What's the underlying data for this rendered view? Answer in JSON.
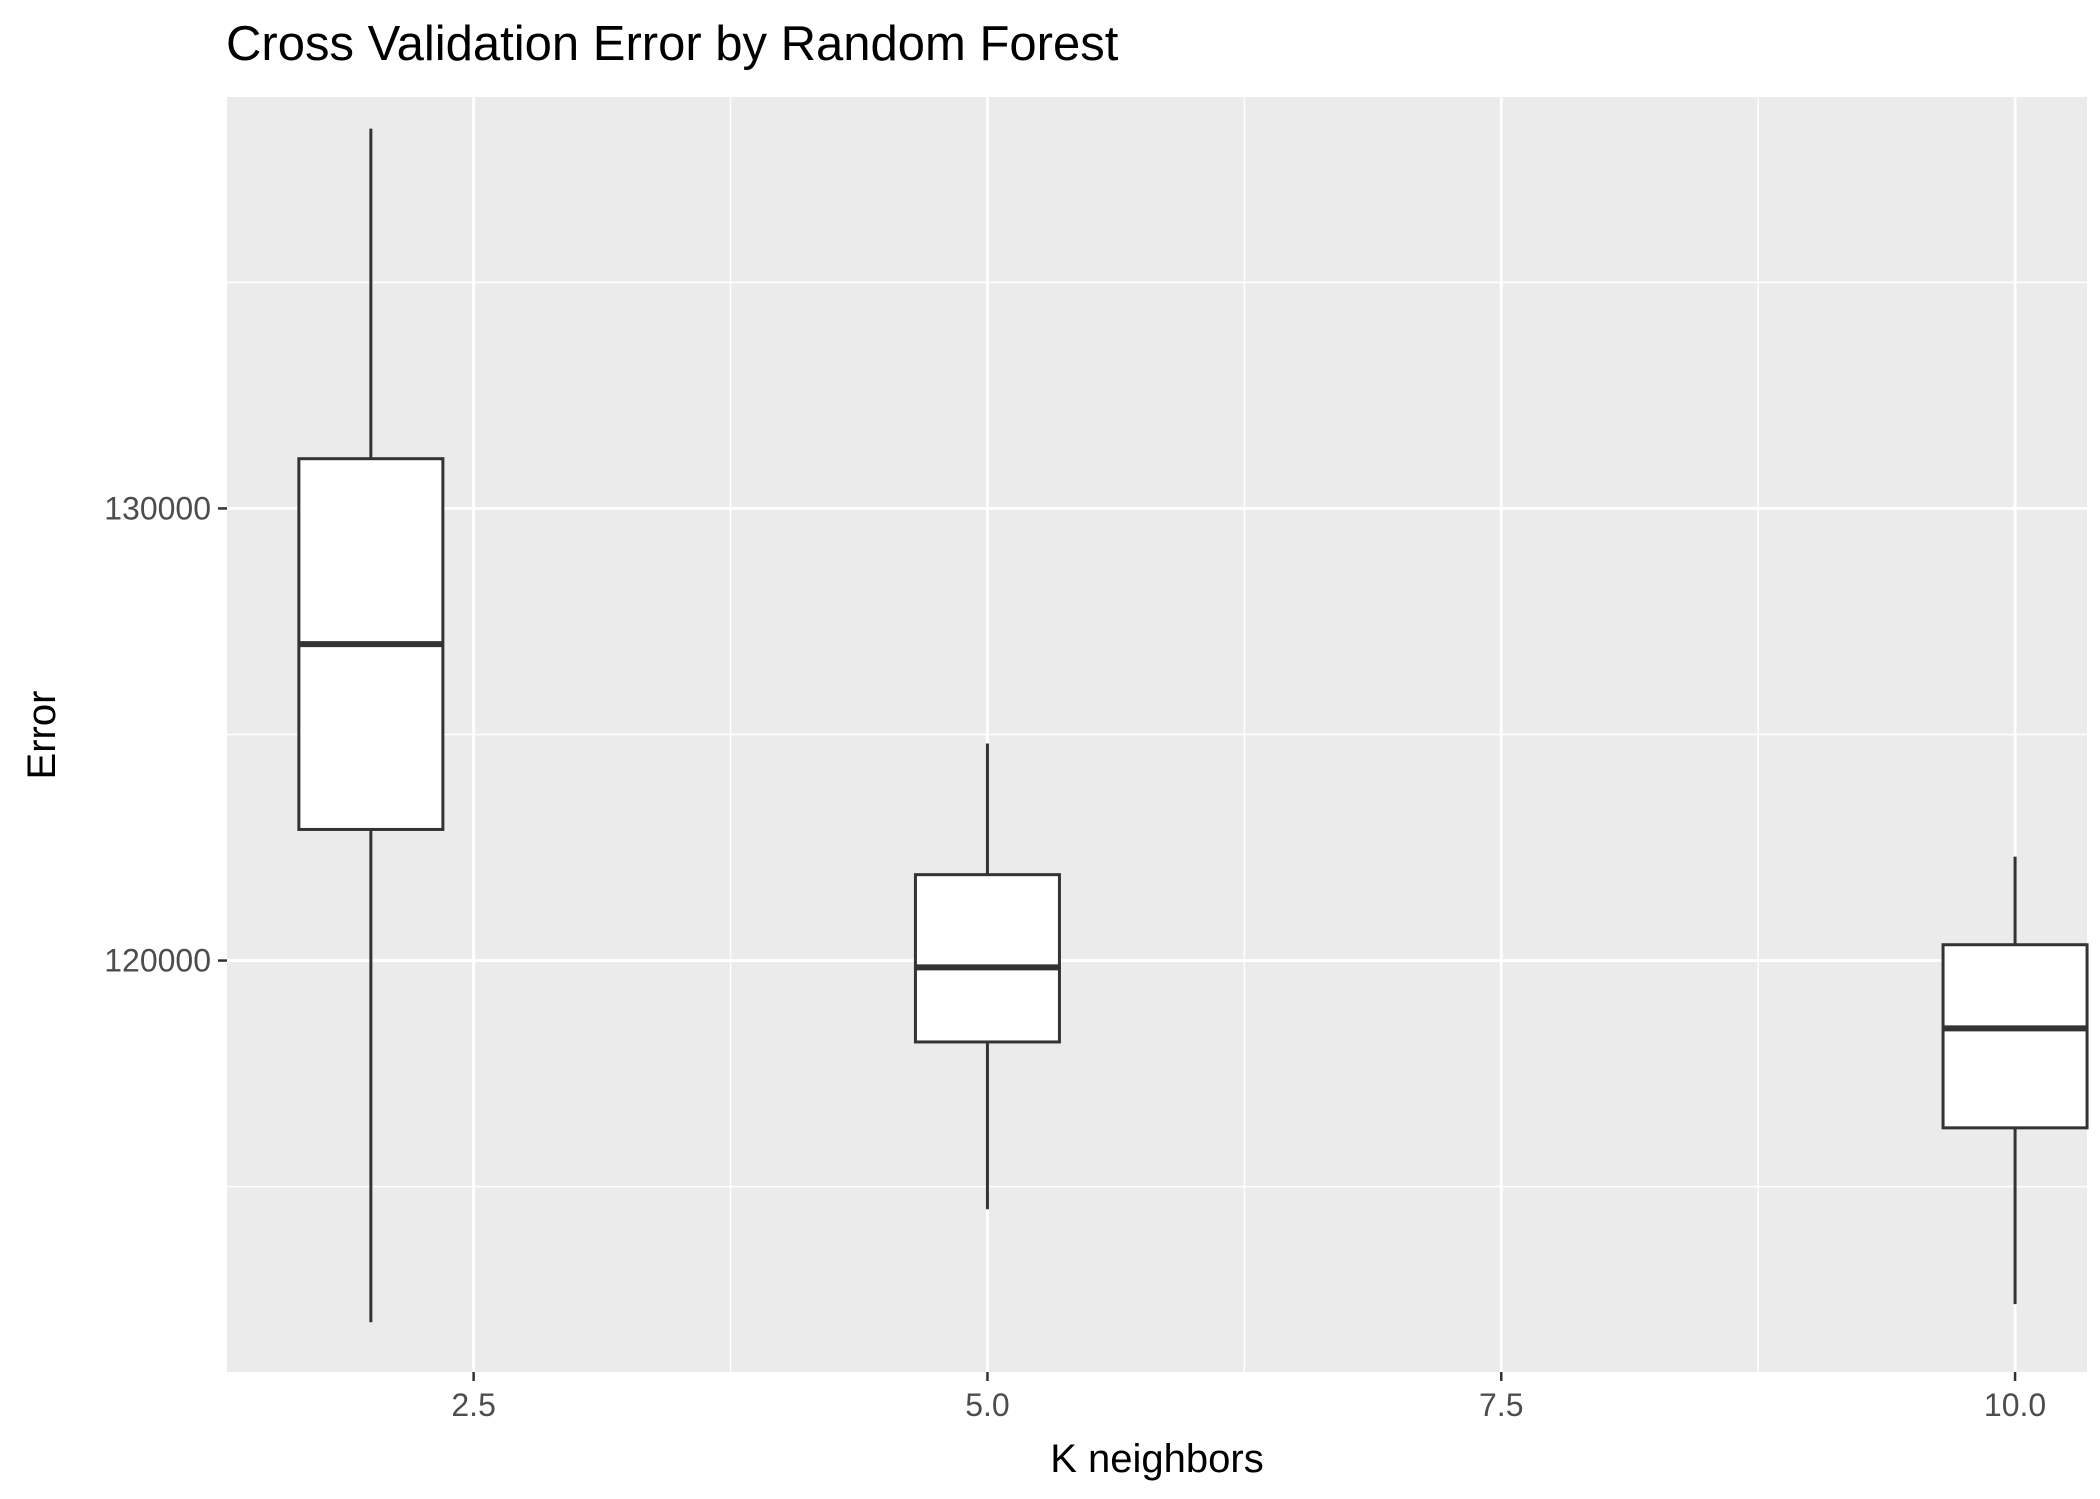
{
  "chart_data": {
    "type": "boxplot",
    "title": "Cross Validation Error by Random Forest",
    "xlabel": "K neighbors",
    "ylabel": "Error",
    "xlim": [
      1.3,
      10.35
    ],
    "ylim": [
      110900,
      139100
    ],
    "x_ticks": [
      2.5,
      5.0,
      7.5,
      10.0
    ],
    "x_tick_labels": [
      "2.5",
      "5.0",
      "7.5",
      "10.0"
    ],
    "y_ticks": [
      120000,
      130000
    ],
    "y_tick_labels": [
      "120000",
      "130000"
    ],
    "grid": true,
    "panel_background": "#ebebeb",
    "grid_color": "#ffffff",
    "box_fill": "#ffffff",
    "box_stroke": "#333333",
    "boxes": [
      {
        "x": 2,
        "ymin": 112000,
        "q1": 122900,
        "median": 127000,
        "q3": 131100,
        "ymax": 138400
      },
      {
        "x": 5,
        "ymin": 114500,
        "q1": 118200,
        "median": 119850,
        "q3": 121900,
        "ymax": 124800
      },
      {
        "x": 10,
        "ymin": 112400,
        "q1": 116300,
        "median": 118500,
        "q3": 120350,
        "ymax": 122300
      }
    ]
  }
}
